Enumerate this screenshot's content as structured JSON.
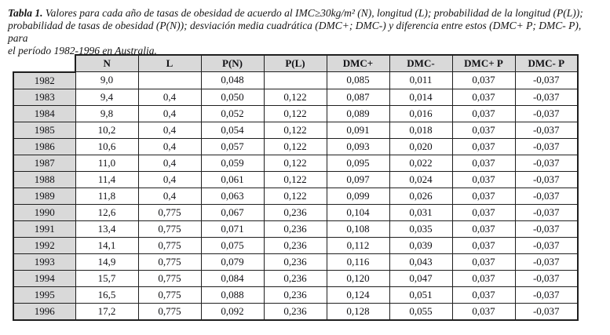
{
  "caption": {
    "label": "Tabla 1.",
    "lines": [
      "Valores para cada año de tasas de obesidad de acuerdo al IMC≥30kg/m² (N), longitud (L); probabilidad de la longitud (P(L));",
      "probabilidad de tasas de obesidad (P(N)); desviación media cuadrática (DMC+; DMC-) y diferencia entre estos (DMC+ P; DMC- P), para",
      "el período 1982-1996 en Australia."
    ]
  },
  "colors": {
    "header_bg": "#d9d9d9",
    "border": "#1f1f1f",
    "text": "#101014"
  },
  "table": {
    "corner_label": "",
    "columns": [
      "N",
      "L",
      "P(N)",
      "P(L)",
      "DMC+",
      "DMC-",
      "DMC+ P",
      "DMC- P"
    ],
    "rows": [
      {
        "year": "1982",
        "values": [
          "9,0",
          "",
          "0,048",
          "",
          "0,085",
          "0,011",
          "0,037",
          "-0,037"
        ]
      },
      {
        "year": "1983",
        "values": [
          "9,4",
          "0,4",
          "0,050",
          "0,122",
          "0,087",
          "0,014",
          "0,037",
          "-0,037"
        ]
      },
      {
        "year": "1984",
        "values": [
          "9,8",
          "0,4",
          "0,052",
          "0,122",
          "0,089",
          "0,016",
          "0,037",
          "-0,037"
        ]
      },
      {
        "year": "1985",
        "values": [
          "10,2",
          "0,4",
          "0,054",
          "0,122",
          "0,091",
          "0,018",
          "0,037",
          "-0,037"
        ]
      },
      {
        "year": "1986",
        "values": [
          "10,6",
          "0,4",
          "0,057",
          "0,122",
          "0,093",
          "0,020",
          "0,037",
          "-0,037"
        ]
      },
      {
        "year": "1987",
        "values": [
          "11,0",
          "0,4",
          "0,059",
          "0,122",
          "0,095",
          "0,022",
          "0,037",
          "-0,037"
        ]
      },
      {
        "year": "1988",
        "values": [
          "11,4",
          "0,4",
          "0,061",
          "0,122",
          "0,097",
          "0,024",
          "0,037",
          "-0,037"
        ]
      },
      {
        "year": "1989",
        "values": [
          "11,8",
          "0,4",
          "0,063",
          "0,122",
          "0,099",
          "0,026",
          "0,037",
          "-0,037"
        ]
      },
      {
        "year": "1990",
        "values": [
          "12,6",
          "0,775",
          "0,067",
          "0,236",
          "0,104",
          "0,031",
          "0,037",
          "-0,037"
        ]
      },
      {
        "year": "1991",
        "values": [
          "13,4",
          "0,775",
          "0,071",
          "0,236",
          "0,108",
          "0,035",
          "0,037",
          "-0,037"
        ]
      },
      {
        "year": "1992",
        "values": [
          "14,1",
          "0,775",
          "0,075",
          "0,236",
          "0,112",
          "0,039",
          "0,037",
          "-0,037"
        ]
      },
      {
        "year": "1993",
        "values": [
          "14,9",
          "0,775",
          "0,079",
          "0,236",
          "0,116",
          "0,043",
          "0,037",
          "-0,037"
        ]
      },
      {
        "year": "1994",
        "values": [
          "15,7",
          "0,775",
          "0,084",
          "0,236",
          "0,120",
          "0,047",
          "0,037",
          "-0,037"
        ]
      },
      {
        "year": "1995",
        "values": [
          "16,5",
          "0,775",
          "0,088",
          "0,236",
          "0,124",
          "0,051",
          "0,037",
          "-0,037"
        ]
      },
      {
        "year": "1996",
        "values": [
          "17,2",
          "0,775",
          "0,092",
          "0,236",
          "0,128",
          "0,055",
          "0,037",
          "-0,037"
        ]
      }
    ]
  }
}
